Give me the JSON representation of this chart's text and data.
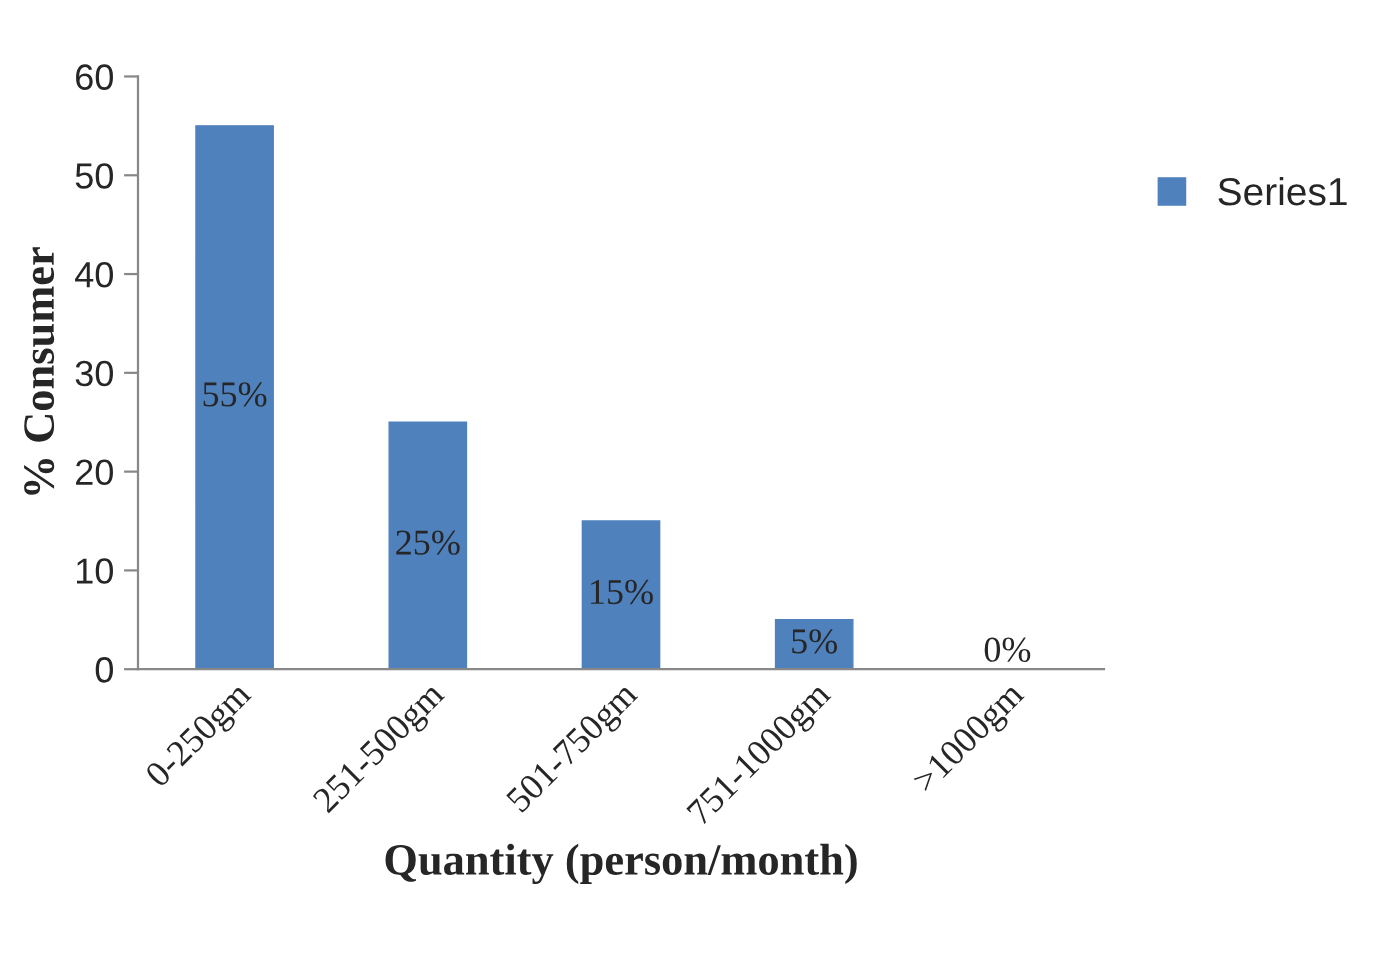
{
  "chart_data": {
    "type": "bar",
    "xlabel": "Quantity (person/month)",
    "ylabel": "% Consumer",
    "categories": [
      "0-250gm",
      "251-500gm",
      "501-750gm",
      "751-1000gm",
      ">1000gm"
    ],
    "series": [
      {
        "name": "Series1",
        "color": "#4f81bd",
        "values": [
          55,
          25,
          15,
          5,
          0
        ],
        "value_labels": [
          "55%",
          "25%",
          "15%",
          "5%",
          "0%"
        ]
      }
    ],
    "ylim": [
      0,
      60
    ],
    "yticks": [
      0,
      10,
      20,
      30,
      40,
      50,
      60
    ],
    "legend": "right",
    "grid": false
  }
}
